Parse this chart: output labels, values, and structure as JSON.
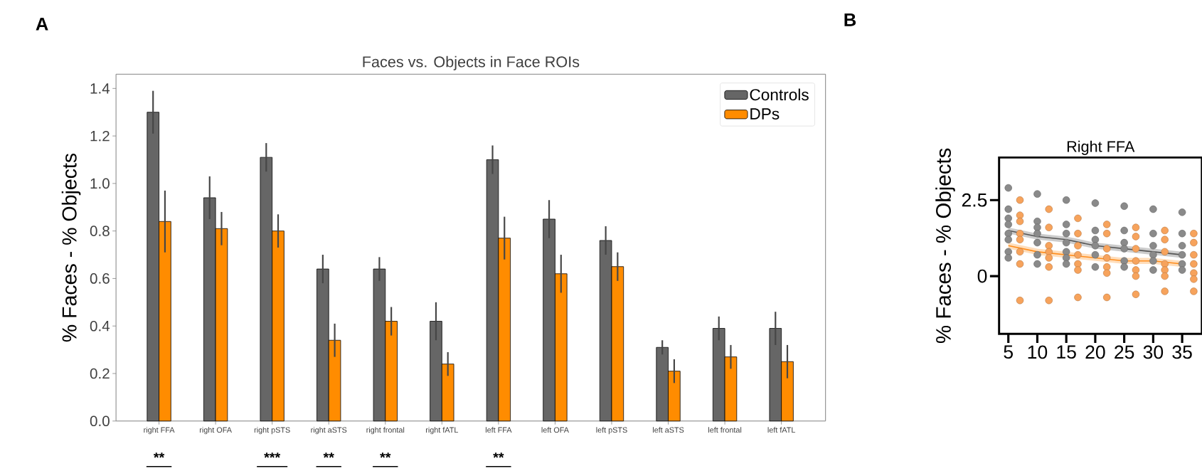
{
  "chart_data": [
    {
      "type": "bar",
      "title": "Faces vs. Objects in Face ROIs",
      "ylabel": "% Faces - % Objects",
      "categories": [
        "right FFA",
        "right OFA",
        "right pSTS",
        "right aSTS",
        "right frontal",
        "right fATL",
        "left FFA",
        "left OFA",
        "left pSTS",
        "left aSTS",
        "left frontal",
        "left fATL"
      ],
      "series": [
        {
          "name": "Controls",
          "color": "#666666",
          "values": [
            1.3,
            0.94,
            1.11,
            0.64,
            0.64,
            0.42,
            1.1,
            0.85,
            0.76,
            0.31,
            0.39,
            0.39
          ],
          "errors": [
            0.09,
            0.09,
            0.06,
            0.06,
            0.05,
            0.08,
            0.06,
            0.08,
            0.06,
            0.03,
            0.05,
            0.07
          ]
        },
        {
          "name": "DPs",
          "color": "#ff8c00",
          "values": [
            0.84,
            0.81,
            0.8,
            0.34,
            0.42,
            0.24,
            0.77,
            0.62,
            0.65,
            0.21,
            0.27,
            0.25
          ],
          "errors": [
            0.13,
            0.07,
            0.07,
            0.07,
            0.06,
            0.05,
            0.09,
            0.08,
            0.06,
            0.05,
            0.05,
            0.07
          ]
        }
      ],
      "ylim": [
        0,
        1.46
      ],
      "yticks": [
        {
          "value": 0,
          "label": "0.0"
        },
        {
          "value": 0.2,
          "label": "0.2"
        },
        {
          "value": 0.4,
          "label": "0.4"
        },
        {
          "value": 0.6,
          "label": "0.6"
        },
        {
          "value": 0.8,
          "label": "0.8"
        },
        {
          "value": 1.0,
          "label": "1.0"
        },
        {
          "value": 1.2,
          "label": "1.2"
        },
        {
          "value": 1.4,
          "label": "1.4"
        }
      ],
      "legend": "top right",
      "annotations": [
        "A",
        "**",
        "***",
        "**",
        "**",
        "**"
      ]
    },
    {
      "type": "scatter",
      "title": "Right FFA",
      "ylabel": "% Faces - % Objects",
      "marker": "circle",
      "series": [
        {
          "color": "#8a8a8a",
          "x": [
            5,
            5,
            5,
            5,
            5,
            5,
            5,
            5,
            10,
            10,
            10,
            10,
            10,
            10,
            10,
            15,
            15,
            15,
            15,
            15,
            15,
            15,
            20,
            20,
            20,
            20,
            20,
            20,
            25,
            25,
            25,
            25,
            25,
            25,
            30,
            30,
            30,
            30,
            30,
            30,
            35,
            35,
            35,
            35,
            35,
            35
          ],
          "values": [
            2.9,
            2.2,
            1.9,
            1.7,
            1.4,
            1.2,
            0.8,
            0.6,
            2.7,
            1.8,
            1.6,
            1.4,
            1.1,
            0.7,
            0.4,
            2.5,
            1.7,
            1.4,
            1.1,
            0.8,
            0.6,
            0.4,
            2.4,
            1.5,
            1.2,
            1.0,
            0.7,
            0.3,
            2.3,
            1.5,
            1.1,
            0.9,
            0.5,
            0.3,
            2.2,
            1.4,
            1.0,
            0.7,
            0.5,
            0.2,
            2.1,
            1.4,
            1.0,
            0.7,
            0.4,
            0.2
          ]
        },
        {
          "color": "#f7a35c",
          "x": [
            7,
            7,
            7,
            7,
            7,
            7,
            7,
            7,
            12,
            12,
            12,
            12,
            12,
            12,
            12,
            17,
            17,
            17,
            17,
            17,
            17,
            17,
            22,
            22,
            22,
            22,
            22,
            22,
            22,
            27,
            27,
            27,
            27,
            27,
            27,
            27,
            32,
            32,
            32,
            32,
            32,
            32,
            32,
            37,
            37,
            37,
            37,
            37,
            37,
            37
          ],
          "values": [
            2.5,
            2.0,
            1.8,
            1.4,
            1.2,
            0.8,
            0.4,
            -0.8,
            2.2,
            1.6,
            1.0,
            0.8,
            0.6,
            0.3,
            -0.8,
            1.9,
            1.4,
            1.0,
            0.7,
            0.4,
            0.2,
            -0.7,
            1.7,
            1.4,
            0.9,
            0.6,
            0.3,
            0.1,
            -0.7,
            1.6,
            1.3,
            0.9,
            0.5,
            0.2,
            0.0,
            -0.6,
            1.5,
            1.2,
            0.8,
            0.4,
            0.2,
            0.0,
            -0.5,
            1.4,
            1.1,
            0.7,
            0.4,
            0.1,
            -0.1,
            -0.5
          ]
        },
        {
          "type": "line",
          "marker": "none",
          "color": "#555555",
          "x": [
            5,
            10,
            15,
            20,
            25,
            30,
            35
          ],
          "values": [
            1.5,
            1.3,
            1.2,
            1.0,
            0.9,
            0.8,
            0.7
          ],
          "lower": [
            1.4,
            1.2,
            1.1,
            0.9,
            0.8,
            0.7,
            0.6
          ],
          "upper": [
            1.6,
            1.4,
            1.3,
            1.1,
            1.0,
            0.9,
            0.8
          ]
        },
        {
          "type": "line",
          "marker": "none",
          "color": "#ff8c1a",
          "x": [
            5,
            10,
            15,
            20,
            25,
            30,
            35
          ],
          "values": [
            1.0,
            0.8,
            0.7,
            0.6,
            0.5,
            0.5,
            0.4
          ],
          "lower": [
            0.9,
            0.7,
            0.6,
            0.5,
            0.4,
            0.4,
            0.3
          ],
          "upper": [
            1.1,
            0.9,
            0.8,
            0.7,
            0.6,
            0.6,
            0.5
          ]
        }
      ],
      "xlim": [
        3.4,
        38.4
      ],
      "ylim": [
        -1.9,
        3.9
      ],
      "xticks": [
        5,
        10,
        15,
        20,
        25,
        30,
        35
      ],
      "yticks": [
        0,
        2.5
      ],
      "annotations": [
        "B"
      ]
    }
  ]
}
